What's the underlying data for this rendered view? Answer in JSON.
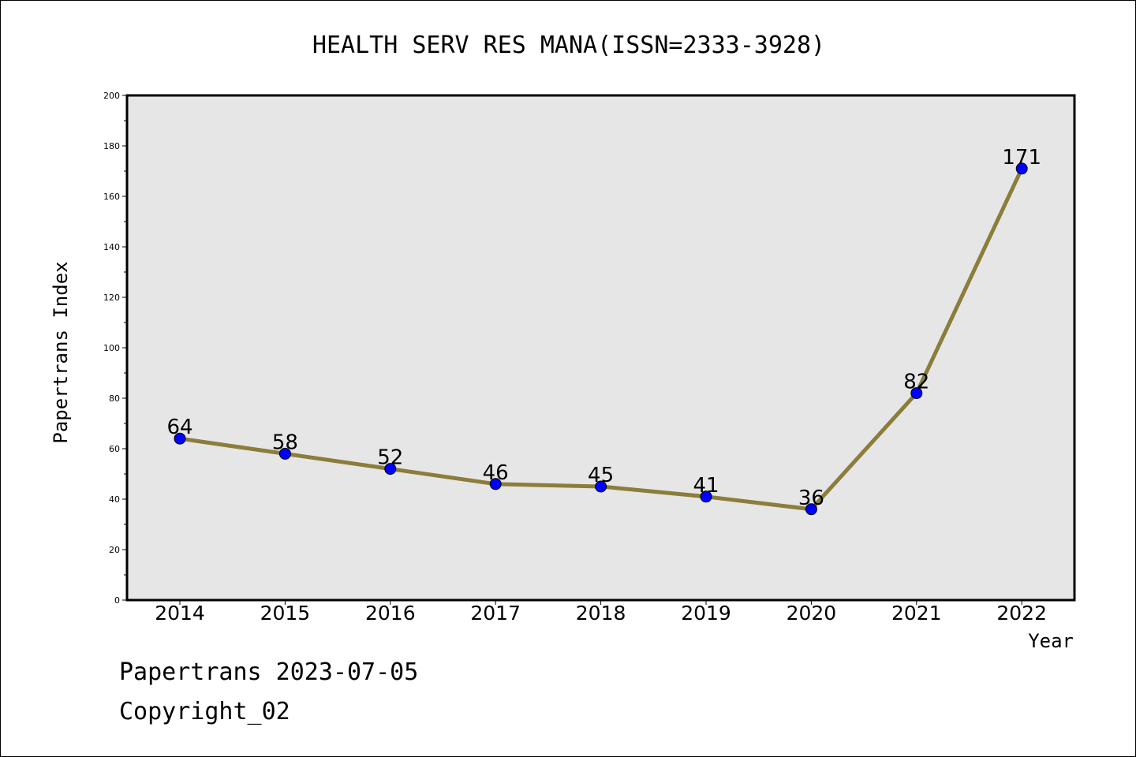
{
  "chart_data": {
    "type": "line",
    "title": "HEALTH SERV RES MANA(ISSN=2333-3928)",
    "xlabel": "Year",
    "ylabel": "Papertrans Index",
    "categories": [
      "2014",
      "2015",
      "2016",
      "2017",
      "2018",
      "2019",
      "2020",
      "2021",
      "2022"
    ],
    "values": [
      64,
      58,
      52,
      46,
      45,
      41,
      36,
      82,
      171
    ],
    "data_labels": [
      "64",
      "58",
      "52",
      "46",
      "45",
      "41",
      "36",
      "82",
      "171"
    ],
    "ylim": [
      0,
      200
    ],
    "y_ticks": [
      0,
      20,
      40,
      60,
      80,
      100,
      120,
      140,
      160,
      180,
      200
    ],
    "y_tick_labels": [
      "0",
      "20",
      "40",
      "60",
      "80",
      "100",
      "120",
      "140",
      "160",
      "180",
      "200"
    ],
    "grid": false,
    "line_color": "#8b7d3a",
    "marker_color": "#0000ff",
    "plot_background": "#e6e6e6"
  },
  "footer": {
    "line1": "Papertrans 2023-07-05",
    "line2": "Copyright_02"
  }
}
